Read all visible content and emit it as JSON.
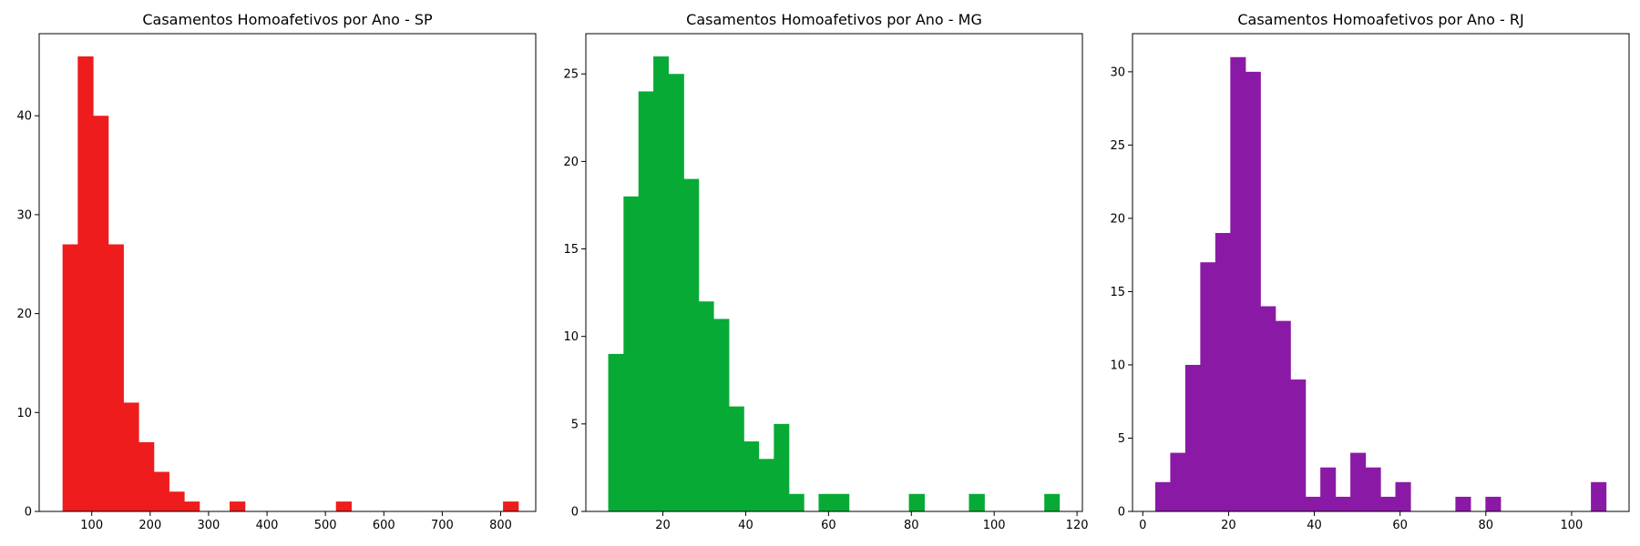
{
  "chart_data": [
    {
      "type": "bar",
      "title": "Casamentos Homoafetivos por Ano - SP",
      "xlabel": "",
      "ylabel": "",
      "color": "#ee1c1c",
      "xlim": [
        10,
        860
      ],
      "ylim": [
        0,
        48.3
      ],
      "xticks": [
        100,
        200,
        300,
        400,
        500,
        600,
        700,
        800
      ],
      "yticks": [
        0,
        10,
        20,
        30,
        40
      ],
      "grid": false,
      "bins": [
        {
          "x0": 50,
          "x1": 76,
          "count": 27
        },
        {
          "x0": 76,
          "x1": 102,
          "count": 46
        },
        {
          "x0": 102,
          "x1": 128,
          "count": 40
        },
        {
          "x0": 128,
          "x1": 154,
          "count": 27
        },
        {
          "x0": 154,
          "x1": 180,
          "count": 11
        },
        {
          "x0": 180,
          "x1": 206,
          "count": 7
        },
        {
          "x0": 206,
          "x1": 232,
          "count": 4
        },
        {
          "x0": 232,
          "x1": 258,
          "count": 2
        },
        {
          "x0": 258,
          "x1": 284,
          "count": 1
        },
        {
          "x0": 336,
          "x1": 362,
          "count": 1
        },
        {
          "x0": 518,
          "x1": 544,
          "count": 1
        },
        {
          "x0": 804,
          "x1": 830,
          "count": 1
        }
      ]
    },
    {
      "type": "bar",
      "title": "Casamentos Homoafetivos por Ano - MG",
      "xlabel": "",
      "ylabel": "",
      "color": "#08aa36",
      "xlim": [
        1.4,
        121.3
      ],
      "ylim": [
        0,
        27.3
      ],
      "xticks": [
        20,
        40,
        60,
        80,
        100,
        120
      ],
      "yticks": [
        0,
        5,
        10,
        15,
        20,
        25
      ],
      "grid": false,
      "bins": [
        {
          "x0": 6.8,
          "x1": 10.5,
          "count": 9
        },
        {
          "x0": 10.5,
          "x1": 14.1,
          "count": 18
        },
        {
          "x0": 14.1,
          "x1": 17.7,
          "count": 24
        },
        {
          "x0": 17.7,
          "x1": 21.3,
          "count": 26
        },
        {
          "x0": 21.3,
          "x1": 25.0,
          "count": 25
        },
        {
          "x0": 25.0,
          "x1": 28.6,
          "count": 19
        },
        {
          "x0": 28.6,
          "x1": 32.2,
          "count": 12
        },
        {
          "x0": 32.2,
          "x1": 35.9,
          "count": 11
        },
        {
          "x0": 35.9,
          "x1": 39.5,
          "count": 6
        },
        {
          "x0": 39.5,
          "x1": 43.1,
          "count": 4
        },
        {
          "x0": 43.1,
          "x1": 46.8,
          "count": 3
        },
        {
          "x0": 46.8,
          "x1": 50.4,
          "count": 5
        },
        {
          "x0": 50.4,
          "x1": 54.0,
          "count": 1
        },
        {
          "x0": 57.6,
          "x1": 61.3,
          "count": 1
        },
        {
          "x0": 61.3,
          "x1": 64.9,
          "count": 1
        },
        {
          "x0": 79.4,
          "x1": 83.1,
          "count": 1
        },
        {
          "x0": 93.9,
          "x1": 97.6,
          "count": 1
        },
        {
          "x0": 112.1,
          "x1": 115.7,
          "count": 1
        }
      ]
    },
    {
      "type": "bar",
      "title": "Casamentos Homoafetivos por Ano - RJ",
      "xlabel": "",
      "ylabel": "",
      "color": "#8a1aa6",
      "xlim": [
        -2.4,
        113.4
      ],
      "ylim": [
        0,
        32.6
      ],
      "xticks": [
        0,
        20,
        40,
        60,
        80,
        100
      ],
      "yticks": [
        0,
        5,
        10,
        15,
        20,
        25,
        30
      ],
      "grid": false,
      "bins": [
        {
          "x0": 2.9,
          "x1": 6.4,
          "count": 2
        },
        {
          "x0": 6.4,
          "x1": 9.9,
          "count": 4
        },
        {
          "x0": 9.9,
          "x1": 13.4,
          "count": 10
        },
        {
          "x0": 13.4,
          "x1": 16.9,
          "count": 17
        },
        {
          "x0": 16.9,
          "x1": 20.4,
          "count": 19
        },
        {
          "x0": 20.4,
          "x1": 23.9,
          "count": 31
        },
        {
          "x0": 23.9,
          "x1": 27.4,
          "count": 30
        },
        {
          "x0": 27.4,
          "x1": 30.9,
          "count": 14
        },
        {
          "x0": 30.9,
          "x1": 34.4,
          "count": 13
        },
        {
          "x0": 34.4,
          "x1": 37.9,
          "count": 9
        },
        {
          "x0": 37.9,
          "x1": 41.4,
          "count": 1
        },
        {
          "x0": 41.4,
          "x1": 44.9,
          "count": 3
        },
        {
          "x0": 44.9,
          "x1": 48.4,
          "count": 1
        },
        {
          "x0": 48.4,
          "x1": 51.9,
          "count": 4
        },
        {
          "x0": 51.9,
          "x1": 55.4,
          "count": 3
        },
        {
          "x0": 55.4,
          "x1": 58.9,
          "count": 1
        },
        {
          "x0": 58.9,
          "x1": 62.4,
          "count": 2
        },
        {
          "x0": 72.9,
          "x1": 76.4,
          "count": 1
        },
        {
          "x0": 79.9,
          "x1": 83.4,
          "count": 1
        },
        {
          "x0": 104.5,
          "x1": 108.0,
          "count": 2
        }
      ]
    }
  ]
}
